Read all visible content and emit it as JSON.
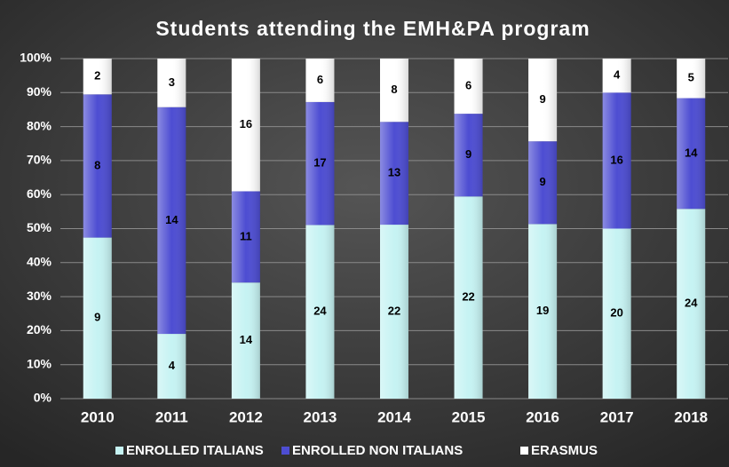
{
  "chart_data": {
    "type": "bar",
    "stacking": "percent",
    "title": "Students attending the EMH&PA program",
    "categories": [
      "2010",
      "2011",
      "2012",
      "2013",
      "2014",
      "2015",
      "2016",
      "2017",
      "2018"
    ],
    "series": [
      {
        "name": "ENROLLED ITALIANS",
        "color": "#c6f3f3",
        "values": [
          9,
          4,
          14,
          24,
          22,
          22,
          19,
          20,
          24
        ]
      },
      {
        "name": "ENROLLED NON ITALIANS",
        "color": "#4d4dd2",
        "values": [
          8,
          14,
          11,
          17,
          13,
          9,
          9,
          16,
          14
        ]
      },
      {
        "name": "ERASMUS",
        "color": "#ffffff",
        "values": [
          2,
          3,
          16,
          6,
          8,
          6,
          9,
          4,
          5
        ]
      }
    ],
    "ylim": [
      0,
      100
    ],
    "yticks": [
      {
        "value": 0,
        "label": "0%"
      },
      {
        "value": 10,
        "label": "10%"
      },
      {
        "value": 20,
        "label": "20%"
      },
      {
        "value": 30,
        "label": "30%"
      },
      {
        "value": 40,
        "label": "40%"
      },
      {
        "value": 50,
        "label": "50%"
      },
      {
        "value": 60,
        "label": "60%"
      },
      {
        "value": 70,
        "label": "70%"
      },
      {
        "value": 80,
        "label": "80%"
      },
      {
        "value": 90,
        "label": "90%"
      },
      {
        "value": 100,
        "label": "100%"
      }
    ],
    "grid": true,
    "legend": "bottom"
  }
}
